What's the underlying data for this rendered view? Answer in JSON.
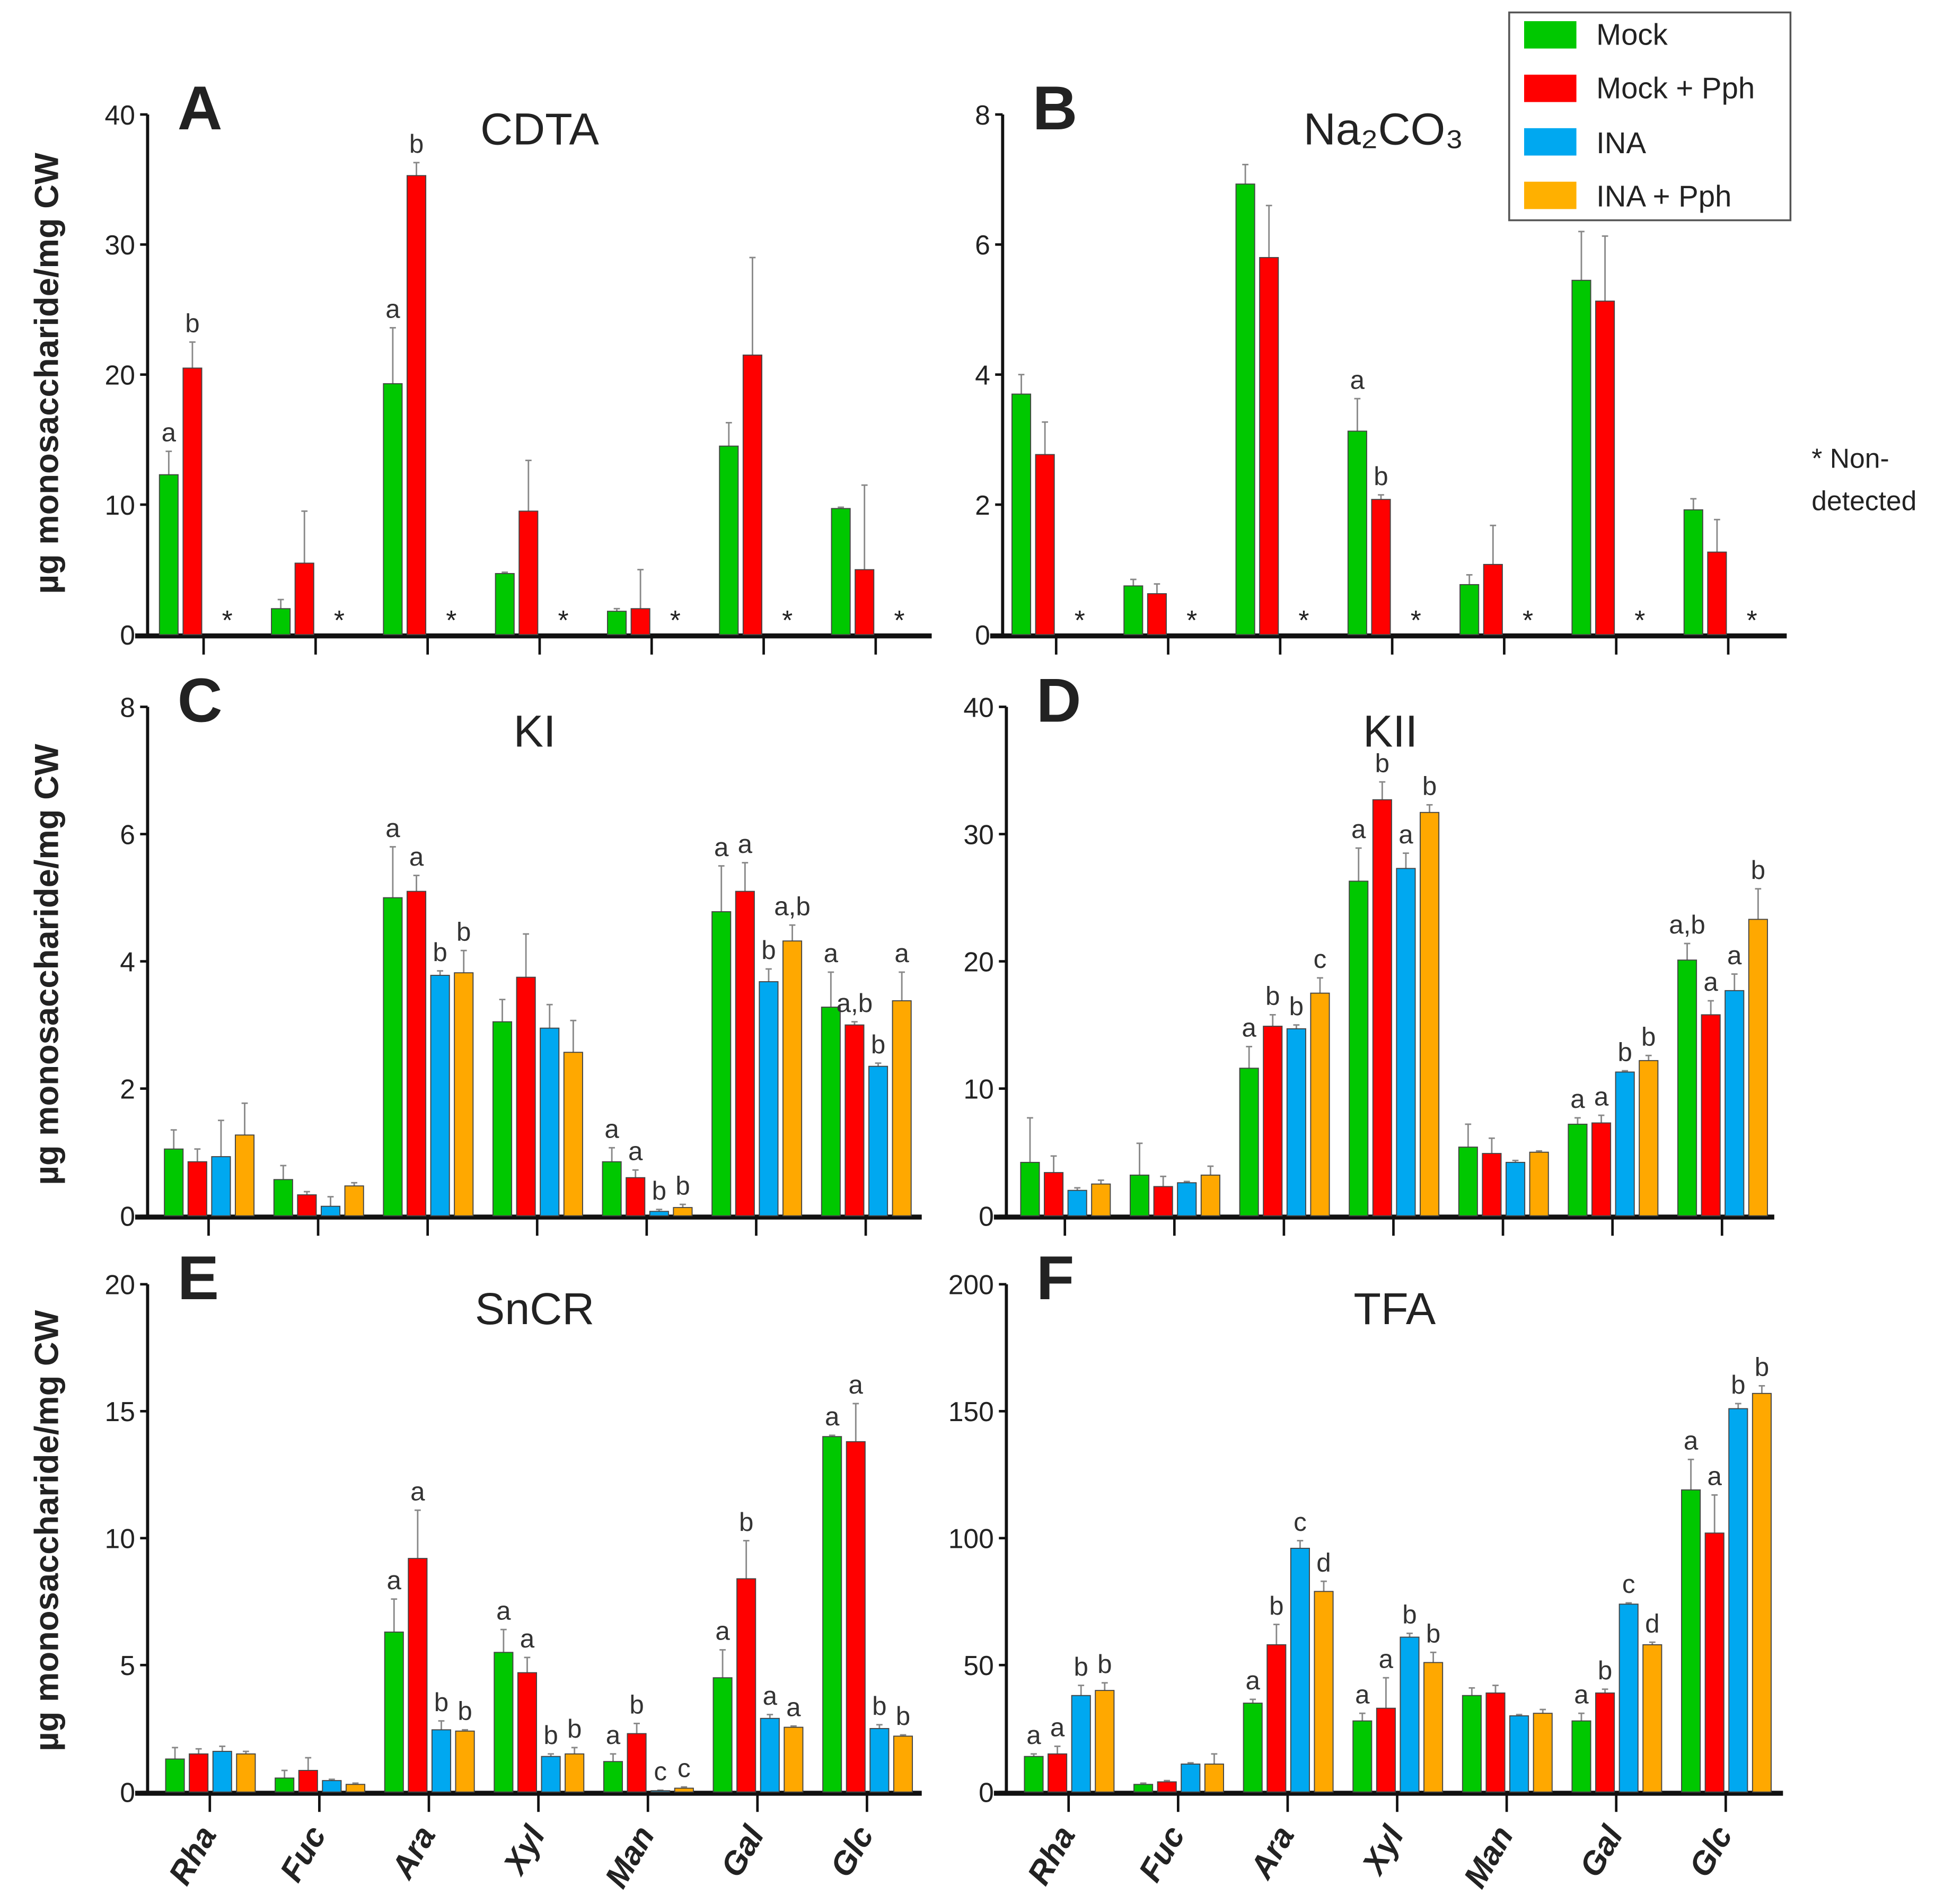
{
  "legend": [
    {
      "label": "Mock",
      "color": "#00c800"
    },
    {
      "label": "Mock + Pph",
      "color": "#ff0000"
    },
    {
      "label": "INA",
      "color": "#00a8f0"
    },
    {
      "label": "INA + Pph",
      "color": "#ffa800"
    }
  ],
  "note": {
    "line1": "* Non-",
    "line2": "detected",
    "marker": "*"
  },
  "ylabel": "µg monosaccharide/mg CW",
  "chart_data": [
    {
      "type": "bar",
      "panel": "A",
      "title": "CDTA",
      "ylim": [
        0,
        40
      ],
      "yticks": [
        0,
        10,
        20,
        30,
        40
      ],
      "categories": [
        "Rha",
        "Fuc",
        "Ara",
        "Xyl",
        "Man",
        "Gal",
        "Glc"
      ],
      "series": [
        {
          "name": "Mock",
          "values": [
            12.3,
            2.0,
            19.3,
            4.7,
            1.8,
            14.5,
            9.7
          ],
          "errors": [
            1.8,
            0.7,
            4.3,
            0.1,
            0.2,
            1.8,
            0.1
          ],
          "letters": [
            "a",
            "",
            "a",
            "",
            "",
            "",
            ""
          ]
        },
        {
          "name": "Mock + Pph",
          "values": [
            20.5,
            5.5,
            35.3,
            9.5,
            2.0,
            21.5,
            5.0
          ],
          "errors": [
            2.0,
            4.0,
            1.0,
            3.9,
            3.0,
            7.5,
            6.5
          ],
          "letters": [
            "b",
            "",
            "b",
            "",
            "",
            "",
            ""
          ]
        }
      ],
      "nondetected": true
    },
    {
      "type": "bar",
      "panel": "B",
      "title": "Na₂CO₃",
      "ylim": [
        0,
        8
      ],
      "yticks": [
        0,
        2,
        4,
        6,
        8
      ],
      "categories": [
        "Rha",
        "Fuc",
        "Ara",
        "Xyl",
        "Man",
        "Gal",
        "Glc"
      ],
      "series": [
        {
          "name": "Mock",
          "values": [
            3.7,
            0.75,
            6.93,
            3.13,
            0.77,
            5.45,
            1.92
          ],
          "errors": [
            0.3,
            0.1,
            0.3,
            0.5,
            0.15,
            0.75,
            0.17
          ],
          "letters": [
            "",
            "",
            "",
            "a",
            "",
            "",
            ""
          ]
        },
        {
          "name": "Mock + Pph",
          "values": [
            2.77,
            0.63,
            5.8,
            2.08,
            1.08,
            5.13,
            1.27
          ],
          "errors": [
            0.5,
            0.15,
            0.8,
            0.07,
            0.6,
            1.0,
            0.5
          ],
          "letters": [
            "",
            "",
            "",
            "b",
            "",
            "",
            ""
          ]
        }
      ],
      "nondetected": true
    },
    {
      "type": "bar",
      "panel": "C",
      "title": "KI",
      "ylim": [
        0,
        8
      ],
      "yticks": [
        0,
        2,
        4,
        6,
        8
      ],
      "categories": [
        "Rha",
        "Fuc",
        "Ara",
        "Xyl",
        "Man",
        "Gal",
        "Glc"
      ],
      "series": [
        {
          "name": "Mock",
          "values": [
            1.05,
            0.57,
            5.0,
            3.05,
            0.85,
            4.78,
            3.28
          ],
          "errors": [
            0.3,
            0.22,
            0.8,
            0.35,
            0.22,
            0.72,
            0.55
          ],
          "letters": [
            "",
            "",
            "a",
            "",
            "a",
            "a",
            "a"
          ]
        },
        {
          "name": "Mock + Pph",
          "values": [
            0.85,
            0.33,
            5.1,
            3.75,
            0.6,
            5.1,
            3.0
          ],
          "errors": [
            0.2,
            0.05,
            0.25,
            0.68,
            0.12,
            0.45,
            0.05
          ],
          "letters": [
            "",
            "",
            "a",
            "",
            "a",
            "a",
            "a,b"
          ]
        },
        {
          "name": "INA",
          "values": [
            0.93,
            0.15,
            3.78,
            2.95,
            0.07,
            3.68,
            2.35
          ],
          "errors": [
            0.57,
            0.15,
            0.07,
            0.37,
            0.03,
            0.2,
            0.05
          ],
          "letters": [
            "",
            "",
            "b",
            "",
            "b",
            "b",
            "b"
          ]
        },
        {
          "name": "INA + Pph",
          "values": [
            1.27,
            0.47,
            3.82,
            2.57,
            0.13,
            4.32,
            3.38
          ],
          "errors": [
            0.5,
            0.05,
            0.35,
            0.5,
            0.05,
            0.25,
            0.45
          ],
          "letters": [
            "",
            "",
            "b",
            "",
            "b",
            "a,b",
            "a"
          ]
        }
      ]
    },
    {
      "type": "bar",
      "panel": "D",
      "title": "KII",
      "ylim": [
        0,
        40
      ],
      "yticks": [
        0,
        10,
        20,
        30,
        40
      ],
      "categories": [
        "Rha",
        "Fuc",
        "Ara",
        "Xyl",
        "Man",
        "Gal",
        "Glc"
      ],
      "series": [
        {
          "name": "Mock",
          "values": [
            4.2,
            3.2,
            11.6,
            26.3,
            5.4,
            7.2,
            20.1
          ],
          "errors": [
            3.5,
            2.5,
            1.7,
            2.6,
            1.8,
            0.5,
            1.3
          ],
          "letters": [
            "",
            "",
            "a",
            "a",
            "",
            "a",
            "a,b"
          ]
        },
        {
          "name": "Mock + Pph",
          "values": [
            3.4,
            2.3,
            14.9,
            32.7,
            4.9,
            7.3,
            15.8
          ],
          "errors": [
            1.3,
            0.8,
            0.9,
            1.4,
            1.2,
            0.6,
            1.1
          ],
          "letters": [
            "",
            "",
            "b",
            "b",
            "",
            "a",
            "a"
          ]
        },
        {
          "name": "INA",
          "values": [
            2.0,
            2.6,
            14.7,
            27.3,
            4.2,
            11.3,
            17.7
          ],
          "errors": [
            0.2,
            0.1,
            0.3,
            1.2,
            0.15,
            0.1,
            1.3
          ],
          "letters": [
            "",
            "",
            "b",
            "a",
            "",
            "b",
            "a"
          ]
        },
        {
          "name": "INA + Pph",
          "values": [
            2.5,
            3.2,
            17.5,
            31.7,
            5.0,
            12.2,
            23.3
          ],
          "errors": [
            0.3,
            0.7,
            1.2,
            0.6,
            0.1,
            0.4,
            2.4
          ],
          "letters": [
            "",
            "",
            "c",
            "b",
            "",
            "b",
            "b"
          ]
        }
      ]
    },
    {
      "type": "bar",
      "panel": "E",
      "title": "SnCR",
      "ylim": [
        0,
        20
      ],
      "yticks": [
        0,
        5,
        10,
        15,
        20
      ],
      "categories": [
        "Rha",
        "Fuc",
        "Ara",
        "Xyl",
        "Man",
        "Gal",
        "Glc"
      ],
      "series": [
        {
          "name": "Mock",
          "values": [
            1.3,
            0.55,
            6.3,
            5.5,
            1.2,
            4.5,
            14.0
          ],
          "errors": [
            0.45,
            0.3,
            1.3,
            0.9,
            0.3,
            1.1,
            0.05
          ],
          "letters": [
            "",
            "",
            "a",
            "a",
            "a",
            "a",
            "a"
          ]
        },
        {
          "name": "Mock + Pph",
          "values": [
            1.5,
            0.85,
            9.2,
            4.7,
            2.3,
            8.4,
            13.8
          ],
          "errors": [
            0.2,
            0.5,
            1.9,
            0.6,
            0.4,
            1.5,
            1.5
          ],
          "letters": [
            "",
            "",
            "a",
            "a",
            "b",
            "b",
            "a"
          ]
        },
        {
          "name": "INA",
          "values": [
            1.6,
            0.45,
            2.45,
            1.4,
            0.05,
            2.9,
            2.5
          ],
          "errors": [
            0.2,
            0.05,
            0.35,
            0.1,
            0.02,
            0.15,
            0.15
          ],
          "letters": [
            "",
            "",
            "b",
            "b",
            "c",
            "a",
            "b"
          ]
        },
        {
          "name": "INA + Pph",
          "values": [
            1.5,
            0.3,
            2.4,
            1.5,
            0.15,
            2.55,
            2.2
          ],
          "errors": [
            0.1,
            0.05,
            0.05,
            0.25,
            0.05,
            0.05,
            0.05
          ],
          "letters": [
            "",
            "",
            "b",
            "b",
            "c",
            "a",
            "b"
          ]
        }
      ]
    },
    {
      "type": "bar",
      "panel": "F",
      "title": "TFA",
      "ylim": [
        0,
        200
      ],
      "yticks": [
        0,
        50,
        100,
        150,
        200
      ],
      "categories": [
        "Rha",
        "Fuc",
        "Ara",
        "Xyl",
        "Man",
        "Gal",
        "Glc"
      ],
      "series": [
        {
          "name": "Mock",
          "values": [
            14,
            3,
            35,
            28,
            38,
            28,
            119
          ],
          "errors": [
            1,
            0.5,
            1.5,
            3,
            3,
            3,
            12
          ],
          "letters": [
            "a",
            "",
            "a",
            "a",
            "",
            "a",
            "a"
          ]
        },
        {
          "name": "Mock + Pph",
          "values": [
            15,
            4,
            58,
            33,
            39,
            39,
            102
          ],
          "errors": [
            3,
            0.5,
            8,
            12,
            3,
            1.5,
            15
          ],
          "letters": [
            "a",
            "",
            "b",
            "a",
            "",
            "b",
            "a"
          ]
        },
        {
          "name": "INA",
          "values": [
            38,
            11,
            96,
            61,
            30,
            74,
            151
          ],
          "errors": [
            4,
            0.5,
            3,
            1.5,
            0.5,
            0.5,
            2
          ],
          "letters": [
            "b",
            "",
            "c",
            "b",
            "",
            "c",
            "b"
          ]
        },
        {
          "name": "INA + Pph",
          "values": [
            40,
            11,
            79,
            51,
            31,
            58,
            157
          ],
          "errors": [
            3,
            4,
            4,
            4,
            1.5,
            1,
            3
          ],
          "letters": [
            "b",
            "",
            "d",
            "b",
            "",
            "d",
            "b"
          ]
        }
      ]
    }
  ]
}
